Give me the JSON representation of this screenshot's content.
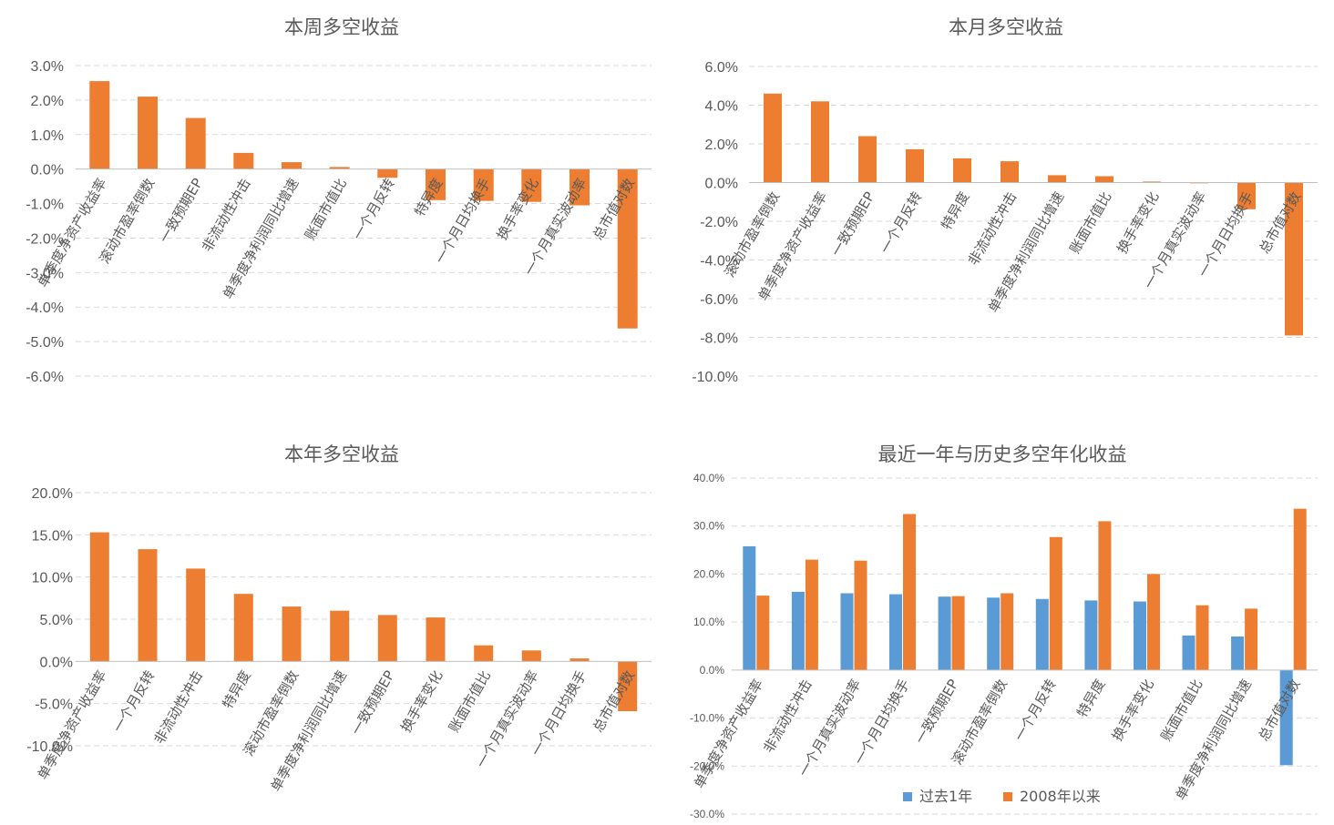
{
  "colors": {
    "orange": "#ED7D31",
    "blue": "#5B9BD5"
  },
  "chart_data": [
    {
      "type": "bar",
      "title": "本周多空收益",
      "categories": [
        "单季度净资产收益率",
        "滚动市盈率倒数",
        "一致预期EP",
        "非流动性冲击",
        "单季度净利润同比增速",
        "账面市值比",
        "一个月反转",
        "特异度",
        "一个月日均换手",
        "换手率变化",
        "一个月真实波动率",
        "总市值对数"
      ],
      "series": [
        {
          "values": [
            2.55,
            2.1,
            1.48,
            0.47,
            0.2,
            0.06,
            -0.25,
            -0.9,
            -0.92,
            -0.95,
            -1.05,
            -4.62
          ]
        }
      ],
      "ylim": [
        -6,
        3
      ],
      "yticks": [
        3,
        2,
        1,
        0,
        -1,
        -2,
        -3,
        -4,
        -5,
        -6
      ],
      "ytick_labels": [
        "3.0%",
        "2.0%",
        "1.0%",
        "0.0%",
        "-1.0%",
        "-2.0%",
        "-3.0%",
        "-4.0%",
        "-5.0%",
        "-6.0%"
      ],
      "grid": true
    },
    {
      "type": "bar",
      "title": "本月多空收益",
      "categories": [
        "滚动市盈率倒数",
        "单季度净资产收益率",
        "一致预期EP",
        "一个月反转",
        "特异度",
        "非流动性冲击",
        "单季度净利润同比增速",
        "账面市值比",
        "换手率变化",
        "一个月真实波动率",
        "一个月日均换手",
        "总市值对数"
      ],
      "series": [
        {
          "values": [
            4.6,
            4.2,
            2.4,
            1.72,
            1.25,
            1.1,
            0.38,
            0.33,
            0.05,
            0.0,
            -1.38,
            -7.9
          ]
        }
      ],
      "ylim": [
        -10,
        6
      ],
      "yticks": [
        6,
        4,
        2,
        0,
        -2,
        -4,
        -6,
        -8,
        -10
      ],
      "ytick_labels": [
        "6.0%",
        "4.0%",
        "2.0%",
        "0.0%",
        "-2.0%",
        "-4.0%",
        "-6.0%",
        "-8.0%",
        "-10.0%"
      ],
      "grid": true
    },
    {
      "type": "bar",
      "title": "本年多空收益",
      "categories": [
        "单季度净资产收益率",
        "一个月反转",
        "非流动性冲击",
        "特异度",
        "滚动市盈率倒数",
        "单季度净利润同比增速",
        "一致预期EP",
        "换手率变化",
        "账面市值比",
        "一个月真实波动率",
        "一个月日均换手",
        "总市值对数"
      ],
      "series": [
        {
          "values": [
            15.3,
            13.3,
            11.0,
            8.0,
            6.5,
            6.0,
            5.5,
            5.2,
            1.9,
            1.3,
            0.35,
            -5.9
          ]
        }
      ],
      "ylim": [
        -10,
        20
      ],
      "yticks": [
        20,
        15,
        10,
        5,
        0,
        -5,
        -10
      ],
      "ytick_labels": [
        "20.0%",
        "15.0%",
        "10.0%",
        "5.0%",
        "0.0%",
        "-5.0%",
        "-10.0%"
      ],
      "grid": true
    },
    {
      "type": "bar",
      "title": "最近一年与历史多空年化收益",
      "categories": [
        "单季度净资产收益率",
        "非流动性冲击",
        "一个月真实波动率",
        "一个月日均换手",
        "一致预期EP",
        "滚动市盈率倒数",
        "一个月反转",
        "特异度",
        "换手率变化",
        "账面市值比",
        "单季度净利润同比增速",
        "总市值对数"
      ],
      "series": [
        {
          "name": "过去1年",
          "color": "#5B9BD5",
          "values": [
            25.8,
            16.3,
            16.0,
            15.8,
            15.3,
            15.1,
            14.8,
            14.5,
            14.3,
            7.2,
            7.0,
            -19.8
          ]
        },
        {
          "name": "2008年以来",
          "color": "#ED7D31",
          "values": [
            15.5,
            23.0,
            22.8,
            32.5,
            15.4,
            16.0,
            27.7,
            31.0,
            20.0,
            13.5,
            12.8,
            33.6
          ]
        }
      ],
      "ylim": [
        -30,
        40
      ],
      "yticks": [
        40,
        30,
        20,
        10,
        0,
        -10,
        -20,
        -30
      ],
      "ytick_labels": [
        "40.0%",
        "30.0%",
        "20.0%",
        "10.0%",
        "0.0%",
        "-10.0%",
        "-20.0%",
        "-30.0%"
      ],
      "legend": "bottom",
      "grid": true
    }
  ]
}
